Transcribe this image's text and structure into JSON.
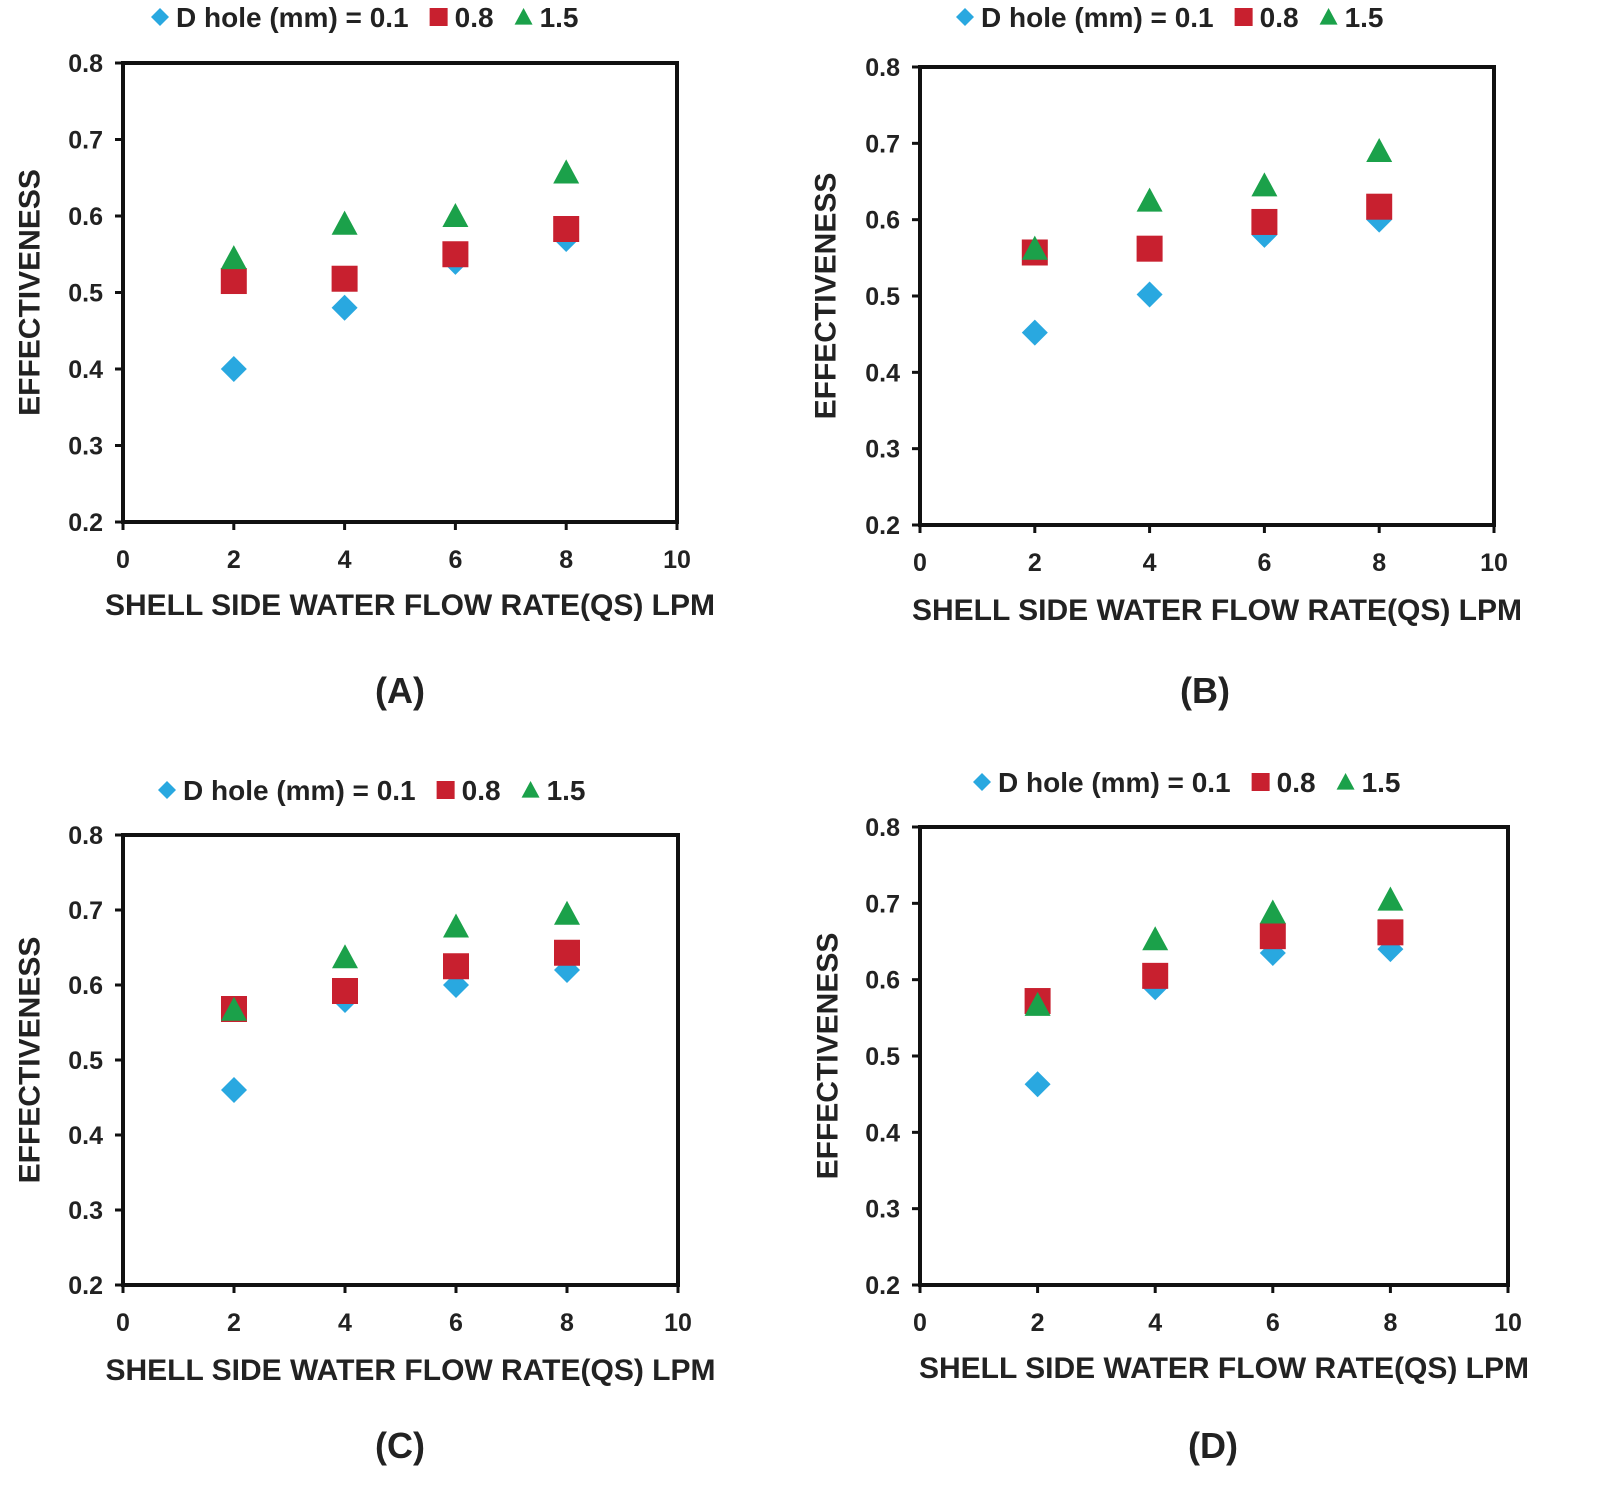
{
  "figure": {
    "colors": {
      "s0": "#29a8e0",
      "s1": "#c8202f",
      "s2": "#1ba14a",
      "axis": "#111111",
      "text": "#222222"
    }
  },
  "chart_data": [
    {
      "type": "scatter",
      "panel_label": "(A)",
      "xlabel": "SHELL SIDE WATER FLOW RATE(QS) LPM",
      "ylabel": "EFFECTIVENESS",
      "xlim": [
        0,
        10
      ],
      "ylim": [
        0.2,
        0.8
      ],
      "x_ticks": [
        "0",
        "2",
        "4",
        "6",
        "8",
        "10"
      ],
      "y_ticks": [
        "0.2",
        "0.3",
        "0.4",
        "0.5",
        "0.6",
        "0.7",
        "0.8"
      ],
      "legend": {
        "prefix": "D hole (mm) = ",
        "entries": [
          "0.1",
          "0.8",
          "1.5"
        ]
      },
      "x": [
        2,
        4,
        6,
        8
      ],
      "series": [
        {
          "name": "0.1",
          "marker": "diamond",
          "values": [
            0.4,
            0.48,
            0.54,
            0.57
          ]
        },
        {
          "name": "0.8",
          "marker": "square",
          "values": [
            0.515,
            0.518,
            0.55,
            0.583
          ]
        },
        {
          "name": "1.5",
          "marker": "triangle",
          "values": [
            0.545,
            0.59,
            0.6,
            0.657
          ]
        }
      ]
    },
    {
      "type": "scatter",
      "panel_label": "(B)",
      "xlabel": "SHELL SIDE WATER FLOW RATE(QS) LPM",
      "ylabel": "EFFECTIVENESS",
      "xlim": [
        0,
        10
      ],
      "ylim": [
        0.2,
        0.8
      ],
      "x_ticks": [
        "0",
        "2",
        "4",
        "6",
        "8",
        "10"
      ],
      "y_ticks": [
        "0.2",
        "0.3",
        "0.4",
        "0.5",
        "0.6",
        "0.7",
        "0.8"
      ],
      "legend": {
        "prefix": "D hole (mm) = ",
        "entries": [
          "0.1",
          "0.8",
          "1.5"
        ]
      },
      "x": [
        2,
        4,
        6,
        8
      ],
      "series": [
        {
          "name": "0.1",
          "marker": "diamond",
          "values": [
            0.452,
            0.502,
            0.58,
            0.6
          ]
        },
        {
          "name": "0.8",
          "marker": "square",
          "values": [
            0.557,
            0.562,
            0.597,
            0.617
          ]
        },
        {
          "name": "1.5",
          "marker": "triangle",
          "values": [
            0.562,
            0.625,
            0.645,
            0.69
          ]
        }
      ]
    },
    {
      "type": "scatter",
      "panel_label": "(C)",
      "xlabel": "SHELL SIDE WATER FLOW RATE(QS) LPM",
      "ylabel": "EFFECTIVENESS",
      "xlim": [
        0,
        10
      ],
      "ylim": [
        0.2,
        0.8
      ],
      "x_ticks": [
        "0",
        "2",
        "4",
        "6",
        "8",
        "10"
      ],
      "y_ticks": [
        "0.2",
        "0.3",
        "0.4",
        "0.5",
        "0.6",
        "0.7",
        "0.8"
      ],
      "legend": {
        "prefix": "D hole (mm) = ",
        "entries": [
          "0.1",
          "0.8",
          "1.5"
        ]
      },
      "x": [
        2,
        4,
        6,
        8
      ],
      "series": [
        {
          "name": "0.1",
          "marker": "diamond",
          "values": [
            0.46,
            0.58,
            0.6,
            0.62
          ]
        },
        {
          "name": "0.8",
          "marker": "square",
          "values": [
            0.568,
            0.592,
            0.625,
            0.643
          ]
        },
        {
          "name": "1.5",
          "marker": "triangle",
          "values": [
            0.567,
            0.637,
            0.678,
            0.695
          ]
        }
      ]
    },
    {
      "type": "scatter",
      "panel_label": "(D)",
      "xlabel": "SHELL SIDE WATER FLOW RATE(QS) LPM",
      "ylabel": "EFFECTIVENESS",
      "xlim": [
        0,
        10
      ],
      "ylim": [
        0.2,
        0.8
      ],
      "x_ticks": [
        "0",
        "2",
        "4",
        "6",
        "8",
        "10"
      ],
      "y_ticks": [
        "0.2",
        "0.3",
        "0.4",
        "0.5",
        "0.6",
        "0.7",
        "0.8"
      ],
      "legend": {
        "prefix": "D hole (mm) = ",
        "entries": [
          "0.1",
          "0.8",
          "1.5"
        ]
      },
      "x": [
        2,
        4,
        6,
        8
      ],
      "series": [
        {
          "name": "0.1",
          "marker": "diamond",
          "values": [
            0.463,
            0.59,
            0.635,
            0.64
          ]
        },
        {
          "name": "0.8",
          "marker": "square",
          "values": [
            0.572,
            0.605,
            0.657,
            0.662
          ]
        },
        {
          "name": "1.5",
          "marker": "triangle",
          "values": [
            0.567,
            0.653,
            0.688,
            0.705
          ]
        }
      ]
    }
  ]
}
